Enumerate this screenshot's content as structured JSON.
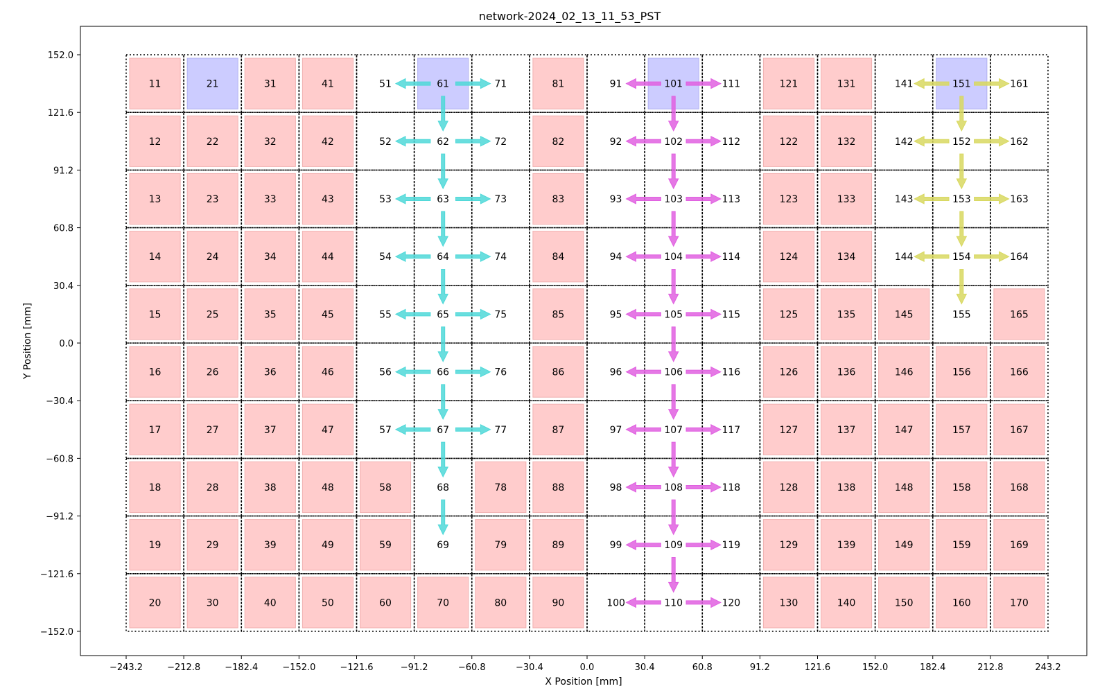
{
  "chart_data": {
    "type": "heatmap",
    "title": "network-2024_02_13_11_53_PST",
    "xlabel": "X Position [mm]",
    "ylabel": "Y Position [mm]",
    "xlim": [
      -243.2,
      243.2
    ],
    "ylim": [
      -152.0,
      152.0
    ],
    "x_ticks": [
      "−243.2",
      "−212.8",
      "−182.4",
      "−152.0",
      "−121.6",
      "−91.2",
      "−60.8",
      "−30.4",
      "0.0",
      "30.4",
      "60.8",
      "91.2",
      "121.6",
      "152.0",
      "182.4",
      "212.8",
      "243.2"
    ],
    "y_ticks": [
      "152.0",
      "121.6",
      "91.2",
      "60.8",
      "30.4",
      "0.0",
      "−30.4",
      "−60.8",
      "−91.2",
      "−121.6",
      "−152.0"
    ],
    "grid": {
      "columns": 16,
      "rows": 10,
      "cell_mm": 30.4,
      "first_id": 11,
      "id_step_column": 10,
      "id_step_row": 1
    },
    "node_states": {
      "source": [
        21,
        61,
        101,
        151
      ],
      "empty": [
        51,
        52,
        53,
        54,
        55,
        56,
        57,
        62,
        63,
        64,
        65,
        66,
        67,
        68,
        69,
        71,
        72,
        73,
        74,
        75,
        76,
        77,
        91,
        92,
        93,
        94,
        95,
        96,
        97,
        98,
        99,
        100,
        102,
        103,
        104,
        105,
        106,
        107,
        108,
        109,
        110,
        111,
        112,
        113,
        114,
        115,
        116,
        117,
        118,
        119,
        120,
        141,
        142,
        143,
        144,
        152,
        153,
        154,
        155,
        161,
        162,
        163,
        164
      ]
    },
    "state_colors": {
      "occupied": "#ffcccc",
      "source": "#ccccff"
    },
    "networks": [
      {
        "color": "#4fd8d8",
        "edges": [
          [
            61,
            51
          ],
          [
            61,
            71
          ],
          [
            61,
            62
          ],
          [
            62,
            52
          ],
          [
            62,
            72
          ],
          [
            62,
            63
          ],
          [
            63,
            53
          ],
          [
            63,
            73
          ],
          [
            63,
            64
          ],
          [
            64,
            54
          ],
          [
            64,
            74
          ],
          [
            64,
            65
          ],
          [
            65,
            55
          ],
          [
            65,
            75
          ],
          [
            65,
            66
          ],
          [
            66,
            56
          ],
          [
            66,
            76
          ],
          [
            66,
            67
          ],
          [
            67,
            57
          ],
          [
            67,
            77
          ],
          [
            67,
            68
          ],
          [
            68,
            69
          ]
        ]
      },
      {
        "color": "#e060e0",
        "edges": [
          [
            101,
            91
          ],
          [
            101,
            111
          ],
          [
            101,
            102
          ],
          [
            102,
            92
          ],
          [
            102,
            112
          ],
          [
            102,
            103
          ],
          [
            103,
            93
          ],
          [
            103,
            113
          ],
          [
            103,
            104
          ],
          [
            104,
            94
          ],
          [
            104,
            114
          ],
          [
            104,
            105
          ],
          [
            105,
            95
          ],
          [
            105,
            115
          ],
          [
            105,
            106
          ],
          [
            106,
            96
          ],
          [
            106,
            116
          ],
          [
            106,
            107
          ],
          [
            107,
            97
          ],
          [
            107,
            117
          ],
          [
            107,
            108
          ],
          [
            108,
            98
          ],
          [
            108,
            118
          ],
          [
            108,
            109
          ],
          [
            109,
            99
          ],
          [
            109,
            119
          ],
          [
            109,
            110
          ],
          [
            110,
            100
          ],
          [
            110,
            120
          ]
        ]
      },
      {
        "color": "#d8d860",
        "edges": [
          [
            151,
            141
          ],
          [
            151,
            161
          ],
          [
            151,
            152
          ],
          [
            152,
            142
          ],
          [
            152,
            162
          ],
          [
            152,
            153
          ],
          [
            153,
            143
          ],
          [
            153,
            163
          ],
          [
            153,
            154
          ],
          [
            154,
            144
          ],
          [
            154,
            164
          ],
          [
            154,
            155
          ]
        ]
      }
    ]
  }
}
